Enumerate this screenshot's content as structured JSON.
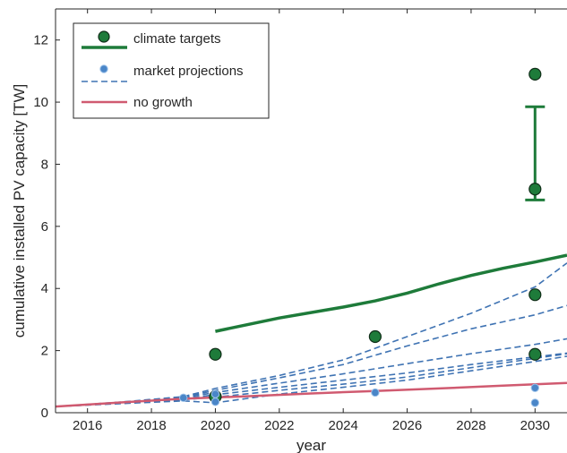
{
  "chart_data": {
    "type": "line",
    "xlabel": "year",
    "ylabel": "cumulative installed PV capacity [TW]",
    "xlim": [
      2015,
      2031
    ],
    "ylim": [
      0,
      13
    ],
    "xticks": [
      2016,
      2018,
      2020,
      2022,
      2024,
      2026,
      2028,
      2030
    ],
    "yticks": [
      0,
      2,
      4,
      6,
      8,
      10,
      12
    ],
    "xtick_labels": [
      "2016",
      "2018",
      "2020",
      "2022",
      "2024",
      "2026",
      "2028",
      "2030"
    ],
    "ytick_labels": [
      "0",
      "2",
      "4",
      "6",
      "8",
      "10",
      "12"
    ],
    "grid": false,
    "legend_position": "top-left",
    "colors": {
      "climate": "#1e7b3a",
      "market": "#3f73b3",
      "nogrowth": "#d05a70",
      "axis": "#262626"
    },
    "legend": [
      {
        "label": "climate targets",
        "kind": "climate"
      },
      {
        "label": "market projections",
        "kind": "market"
      },
      {
        "label": "no growth",
        "kind": "nogrowth"
      }
    ],
    "series": [
      {
        "name": "climate targets",
        "style": "solid",
        "color": "#1e7b3a",
        "points": [
          [
            2020,
            2.62
          ],
          [
            2022,
            3.05
          ],
          [
            2024,
            3.4
          ],
          [
            2025,
            3.6
          ],
          [
            2026,
            3.85
          ],
          [
            2027,
            4.15
          ],
          [
            2028,
            4.42
          ],
          [
            2029,
            4.65
          ],
          [
            2030,
            4.85
          ],
          [
            2031,
            5.07
          ]
        ]
      },
      {
        "name": "no growth",
        "style": "solid",
        "color": "#d05a70",
        "points": [
          [
            2015,
            0.2
          ],
          [
            2017,
            0.33
          ],
          [
            2019,
            0.45
          ],
          [
            2021,
            0.53
          ],
          [
            2023,
            0.62
          ],
          [
            2025,
            0.7
          ],
          [
            2027,
            0.78
          ],
          [
            2029,
            0.87
          ],
          [
            2031,
            0.96
          ]
        ]
      }
    ],
    "market_lines": [
      [
        [
          2015,
          0.2
        ],
        [
          2017,
          0.34
        ],
        [
          2019,
          0.52
        ],
        [
          2020,
          0.78
        ],
        [
          2022,
          1.2
        ],
        [
          2024,
          1.7
        ],
        [
          2026,
          2.45
        ],
        [
          2028,
          3.2
        ],
        [
          2030,
          4.05
        ],
        [
          2031,
          4.82
        ]
      ],
      [
        [
          2015,
          0.2
        ],
        [
          2017,
          0.33
        ],
        [
          2019,
          0.5
        ],
        [
          2020,
          0.72
        ],
        [
          2022,
          1.12
        ],
        [
          2024,
          1.55
        ],
        [
          2026,
          2.15
        ],
        [
          2028,
          2.7
        ],
        [
          2030,
          3.15
        ],
        [
          2031,
          3.45
        ]
      ],
      [
        [
          2015,
          0.2
        ],
        [
          2017,
          0.32
        ],
        [
          2019,
          0.48
        ],
        [
          2020,
          0.65
        ],
        [
          2022,
          0.95
        ],
        [
          2024,
          1.25
        ],
        [
          2026,
          1.58
        ],
        [
          2028,
          1.9
        ],
        [
          2030,
          2.2
        ],
        [
          2031,
          2.38
        ]
      ],
      [
        [
          2015,
          0.2
        ],
        [
          2017,
          0.31
        ],
        [
          2019,
          0.45
        ],
        [
          2020,
          0.58
        ],
        [
          2022,
          0.82
        ],
        [
          2024,
          1.05
        ],
        [
          2026,
          1.28
        ],
        [
          2028,
          1.55
        ],
        [
          2030,
          1.8
        ],
        [
          2031,
          1.92
        ]
      ],
      [
        [
          2015,
          0.2
        ],
        [
          2017,
          0.3
        ],
        [
          2019,
          0.42
        ],
        [
          2020,
          0.5
        ],
        [
          2022,
          0.72
        ],
        [
          2024,
          0.92
        ],
        [
          2026,
          1.15
        ],
        [
          2028,
          1.45
        ],
        [
          2030,
          1.75
        ],
        [
          2031,
          1.9
        ]
      ],
      [
        [
          2015,
          0.2
        ],
        [
          2017,
          0.29
        ],
        [
          2019,
          0.38
        ],
        [
          2020,
          0.32
        ],
        [
          2022,
          0.6
        ],
        [
          2024,
          0.82
        ],
        [
          2026,
          1.05
        ],
        [
          2028,
          1.35
        ],
        [
          2030,
          1.65
        ],
        [
          2031,
          1.82
        ]
      ]
    ],
    "climate_points": [
      [
        2020,
        1.88
      ],
      [
        2020,
        0.52
      ],
      [
        2025,
        2.45
      ],
      [
        2030,
        10.9
      ],
      [
        2030,
        7.2
      ],
      [
        2030,
        3.8
      ],
      [
        2030,
        1.88
      ]
    ],
    "market_points": [
      [
        2019,
        0.48
      ],
      [
        2020,
        0.35
      ],
      [
        2020,
        0.6
      ],
      [
        2025,
        0.65
      ],
      [
        2030,
        0.8
      ],
      [
        2030,
        0.32
      ]
    ],
    "error_bar": {
      "x": 2030,
      "low": 6.85,
      "high": 9.85,
      "color": "#1e7b3a"
    }
  }
}
